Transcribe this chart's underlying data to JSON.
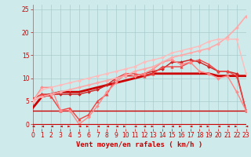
{
  "xlabel": "Vent moyen/en rafales ( km/h )",
  "xlim": [
    0,
    23
  ],
  "ylim": [
    -1,
    26
  ],
  "xticks": [
    0,
    1,
    2,
    3,
    4,
    5,
    6,
    7,
    8,
    9,
    10,
    11,
    12,
    13,
    14,
    15,
    16,
    17,
    18,
    19,
    20,
    21,
    22,
    23
  ],
  "yticks": [
    0,
    5,
    10,
    15,
    20,
    25
  ],
  "bg_color": "#ceeaea",
  "grid_color": "#aacccc",
  "lines": [
    {
      "x": [
        0,
        1,
        2,
        3,
        4,
        5,
        6,
        7,
        8,
        9,
        10,
        11,
        12,
        13,
        14,
        15,
        16,
        17,
        18,
        19,
        20,
        21,
        22,
        23
      ],
      "y": [
        3,
        3,
        3,
        3,
        3,
        3,
        3,
        3,
        3,
        3,
        3,
        3,
        3,
        3,
        3,
        3,
        3,
        3,
        3,
        3,
        3,
        3,
        3,
        3
      ],
      "color": "#cc0000",
      "linewidth": 1.0,
      "linestyle": "-",
      "marker": null
    },
    {
      "x": [
        0,
        1,
        2,
        3,
        4,
        5,
        6,
        7,
        8,
        9,
        10,
        11,
        12,
        13,
        14,
        15,
        16,
        17,
        18,
        19,
        20,
        21,
        22,
        23
      ],
      "y": [
        3.5,
        6.0,
        6.5,
        7.0,
        7.0,
        7.0,
        7.5,
        8.0,
        8.5,
        9.0,
        9.5,
        10.0,
        10.5,
        11.0,
        11.0,
        11.0,
        11.0,
        11.0,
        11.0,
        11.0,
        10.5,
        10.5,
        10.5,
        10.5
      ],
      "color": "#cc0000",
      "linewidth": 2.0,
      "linestyle": "-",
      "marker": null
    },
    {
      "x": [
        0,
        1,
        2,
        3,
        4,
        5,
        6,
        7,
        8,
        9,
        10,
        11,
        12,
        13,
        14,
        15,
        16,
        17,
        18,
        19,
        20,
        21,
        22,
        23
      ],
      "y": [
        5.5,
        6.5,
        6.5,
        6.5,
        6.5,
        6.5,
        7.0,
        7.5,
        8.5,
        10.0,
        10.5,
        10.5,
        11.0,
        11.5,
        12.0,
        13.5,
        13.5,
        14.0,
        13.5,
        12.5,
        11.5,
        11.5,
        11.0,
        3.0
      ],
      "color": "#cc2222",
      "linewidth": 1.0,
      "linestyle": "-",
      "marker": "D",
      "markersize": 2.0
    },
    {
      "x": [
        0,
        1,
        2,
        3,
        4,
        5,
        6,
        7,
        8,
        9,
        10,
        11,
        12,
        13,
        14,
        15,
        16,
        17,
        18,
        19,
        20,
        21,
        22,
        23
      ],
      "y": [
        5.5,
        6.5,
        6.0,
        3.0,
        3.5,
        1.0,
        2.0,
        5.0,
        6.5,
        10.0,
        11.0,
        11.0,
        10.5,
        11.0,
        12.5,
        12.5,
        12.5,
        13.5,
        14.0,
        13.0,
        11.5,
        11.5,
        10.5,
        3.0
      ],
      "color": "#ee4444",
      "linewidth": 1.0,
      "linestyle": "-",
      "marker": "^",
      "markersize": 2.5
    },
    {
      "x": [
        0,
        1,
        2,
        3,
        4,
        5,
        6,
        7,
        8,
        9,
        10,
        11,
        12,
        13,
        14,
        15,
        16,
        17,
        18,
        19,
        20,
        21,
        22,
        23
      ],
      "y": [
        5.0,
        8.0,
        8.0,
        3.0,
        3.0,
        0.0,
        1.5,
        4.0,
        7.0,
        9.0,
        11.0,
        10.5,
        11.0,
        12.0,
        13.5,
        14.0,
        13.0,
        13.5,
        11.5,
        11.0,
        10.0,
        10.5,
        7.0,
        3.0
      ],
      "color": "#ff8888",
      "linewidth": 1.0,
      "linestyle": "-",
      "marker": "D",
      "markersize": 2.0
    },
    {
      "x": [
        0,
        1,
        2,
        3,
        4,
        5,
        6,
        7,
        8,
        9,
        10,
        11,
        12,
        13,
        14,
        15,
        16,
        17,
        18,
        19,
        20,
        21,
        22,
        23
      ],
      "y": [
        5.0,
        6.0,
        6.5,
        7.0,
        7.5,
        8.0,
        8.5,
        9.0,
        9.5,
        10.0,
        10.5,
        11.5,
        12.0,
        12.5,
        13.5,
        14.5,
        15.0,
        15.5,
        16.0,
        16.5,
        17.5,
        19.0,
        21.0,
        23.5
      ],
      "color": "#ffaaaa",
      "linewidth": 1.2,
      "linestyle": "-",
      "marker": "D",
      "markersize": 2.0
    },
    {
      "x": [
        0,
        1,
        2,
        3,
        4,
        5,
        6,
        7,
        8,
        9,
        10,
        11,
        12,
        13,
        14,
        15,
        16,
        17,
        18,
        19,
        20,
        21,
        22,
        23
      ],
      "y": [
        5.0,
        7.5,
        8.0,
        8.5,
        9.0,
        9.5,
        10.0,
        10.5,
        11.0,
        11.5,
        12.0,
        12.5,
        13.5,
        14.0,
        14.5,
        15.5,
        16.0,
        16.5,
        17.0,
        18.0,
        18.5,
        18.5,
        18.5,
        11.0
      ],
      "color": "#ffbbbb",
      "linewidth": 1.0,
      "linestyle": "-",
      "marker": "D",
      "markersize": 2.0
    }
  ],
  "arrow_directions": [
    "left",
    "left",
    "left",
    "left",
    "right",
    "left",
    "right",
    "left",
    "left",
    "left",
    "right",
    "left",
    "left",
    "right",
    "left",
    "left",
    "right",
    "left",
    "left",
    "right",
    "left",
    "left",
    "right",
    "left"
  ],
  "tick_label_fontsize": 5.5,
  "xlabel_fontsize": 6.5,
  "axis_color": "#cc0000"
}
